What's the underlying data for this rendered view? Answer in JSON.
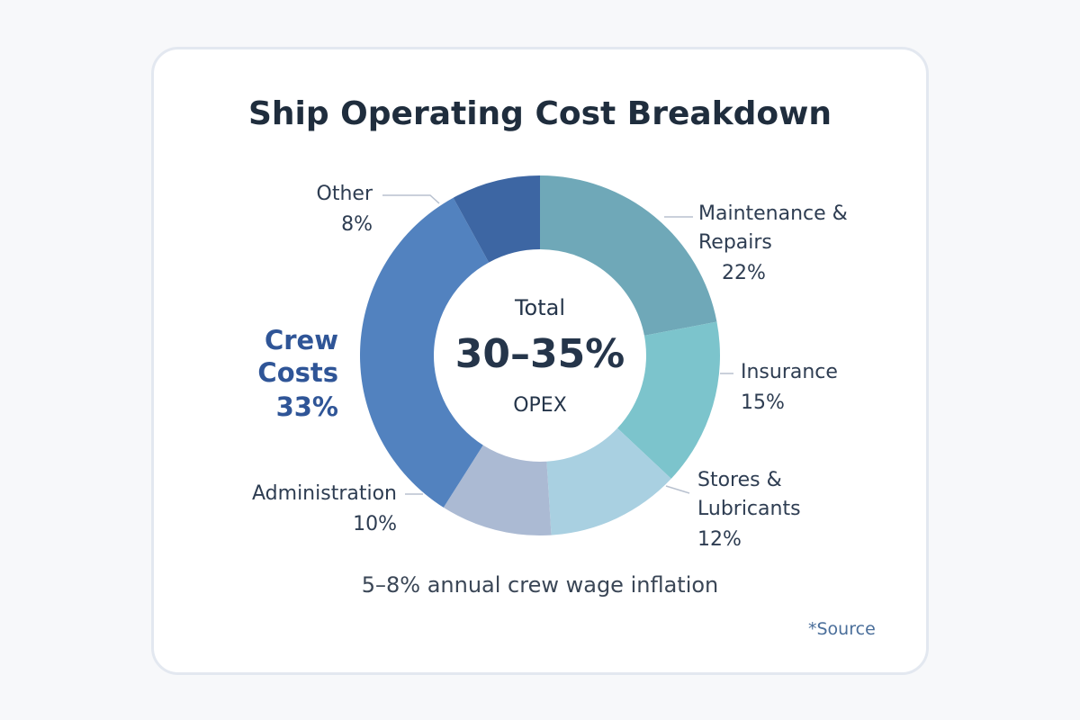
{
  "chart_data": {
    "type": "donut",
    "title": "Ship Operating Cost Breakdown",
    "categories": [
      "Maintenance & Repairs",
      "Insurance",
      "Stores & Lubricants",
      "Administration",
      "Crew Costs",
      "Other"
    ],
    "values": [
      22,
      15,
      12,
      10,
      33,
      8
    ],
    "value_labels": [
      "22%",
      "15%",
      "12%",
      "10%",
      "33%",
      "8%"
    ],
    "colors": [
      "#6fa8b8",
      "#7cc4cc",
      "#a9d0e1",
      "#abbad3",
      "#5282bf",
      "#3d66a3"
    ],
    "highlight": "Crew Costs",
    "center_label": {
      "top": "Total",
      "main": "30–35%",
      "bottom": "OPEX"
    },
    "note": "5–8% annual crew wage inflation",
    "source": "*Source"
  }
}
